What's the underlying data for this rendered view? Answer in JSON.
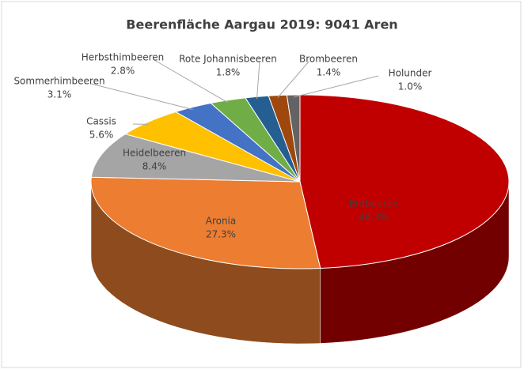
{
  "chart_data": {
    "type": "pie3d",
    "title": "Beerenfläche Aargau 2019: 9041 Aren",
    "categories": [
      "Erdbeeren",
      "Aronia",
      "Heidelbeeren",
      "Cassis",
      "Sommerhimbeeren",
      "Herbsthimbeeren",
      "Rote Johannisbeeren",
      "Brombeeren",
      "Holunder"
    ],
    "values": [
      48.3,
      27.3,
      8.4,
      5.6,
      3.1,
      2.8,
      1.8,
      1.4,
      1.0
    ],
    "value_labels": [
      "48.3%",
      "27.3%",
      "8.4%",
      "5.6%",
      "3.1%",
      "2.8%",
      "1.8%",
      "1.4%",
      "1.0%"
    ],
    "colors": [
      "#c00000",
      "#ed7d31",
      "#a5a5a5",
      "#ffc000",
      "#4472c4",
      "#70ad47",
      "#255e91",
      "#9e480e",
      "#636363"
    ]
  }
}
